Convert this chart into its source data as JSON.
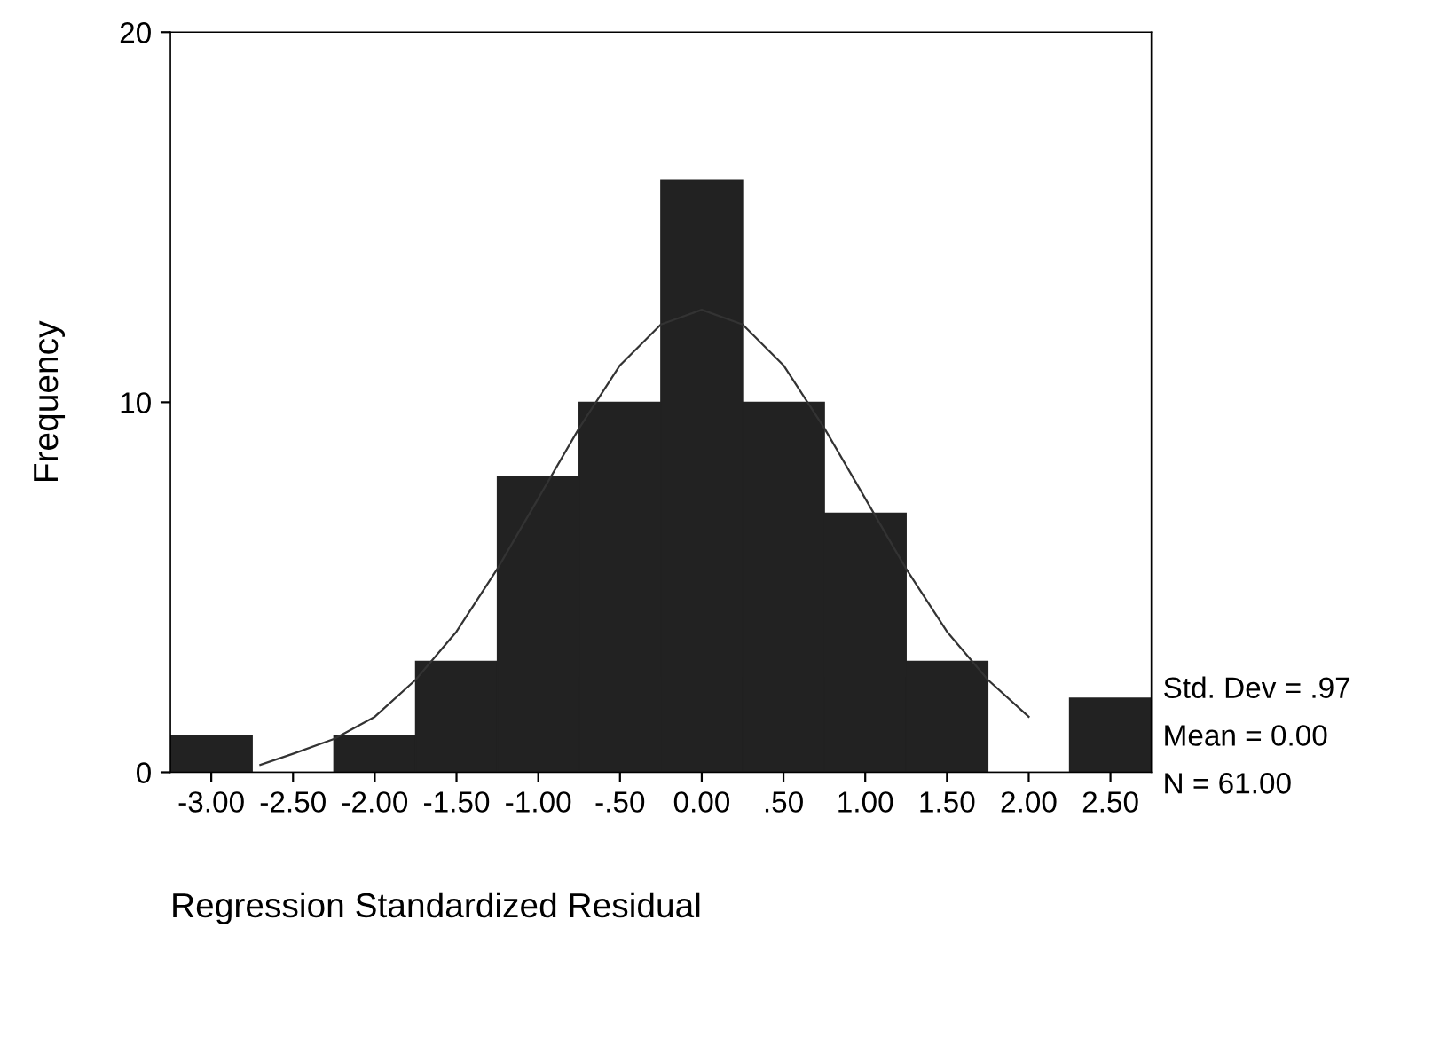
{
  "chart_data": {
    "type": "histogram",
    "xlabel": "Regression Standardized Residual",
    "ylabel": "Frequency",
    "bins": [
      -3.25,
      -2.75,
      -2.25,
      -1.75,
      -1.25,
      -0.75,
      -0.25,
      0.25,
      0.75,
      1.25,
      1.75,
      2.25,
      2.75
    ],
    "values": [
      1,
      0,
      1,
      3,
      8,
      10,
      16,
      10,
      7,
      3,
      0,
      2
    ],
    "color": "#222222",
    "series": [
      {
        "type": "line",
        "color": "#333333",
        "x": [
          -2.7,
          -2.5,
          -2.25,
          -2.0,
          -1.75,
          -1.5,
          -1.25,
          -1.0,
          -0.75,
          -0.5,
          -0.25,
          0.0,
          0.25,
          0.5,
          0.75,
          1.0,
          1.25,
          1.5,
          1.75,
          2.0
        ],
        "values": [
          0.2,
          0.5,
          0.9,
          1.5,
          2.5,
          3.8,
          5.5,
          7.4,
          9.3,
          11.0,
          12.1,
          12.5,
          12.1,
          11.0,
          9.3,
          7.4,
          5.5,
          3.8,
          2.5,
          1.5
        ]
      }
    ],
    "xlim": [
      -3.25,
      2.75
    ],
    "ylim": [
      0,
      20
    ],
    "yticks": [
      0,
      10,
      20
    ],
    "xticks": [
      {
        "value": -3.0,
        "label": "-3.00"
      },
      {
        "value": -2.5,
        "label": "-2.50"
      },
      {
        "value": -2.0,
        "label": "-2.00"
      },
      {
        "value": -1.5,
        "label": "-1.50"
      },
      {
        "value": -1.0,
        "label": "-1.00"
      },
      {
        "value": -0.5,
        "label": "-.50"
      },
      {
        "value": 0.0,
        "label": "0.00"
      },
      {
        "value": 0.5,
        "label": ".50"
      },
      {
        "value": 1.0,
        "label": "1.00"
      },
      {
        "value": 1.5,
        "label": "1.50"
      },
      {
        "value": 2.0,
        "label": "2.00"
      },
      {
        "value": 2.5,
        "label": "2.50"
      }
    ],
    "annotations": [
      "Std. Dev = .97",
      "Mean = 0.00",
      "N = 61.00"
    ],
    "grid": false,
    "legend": false
  }
}
